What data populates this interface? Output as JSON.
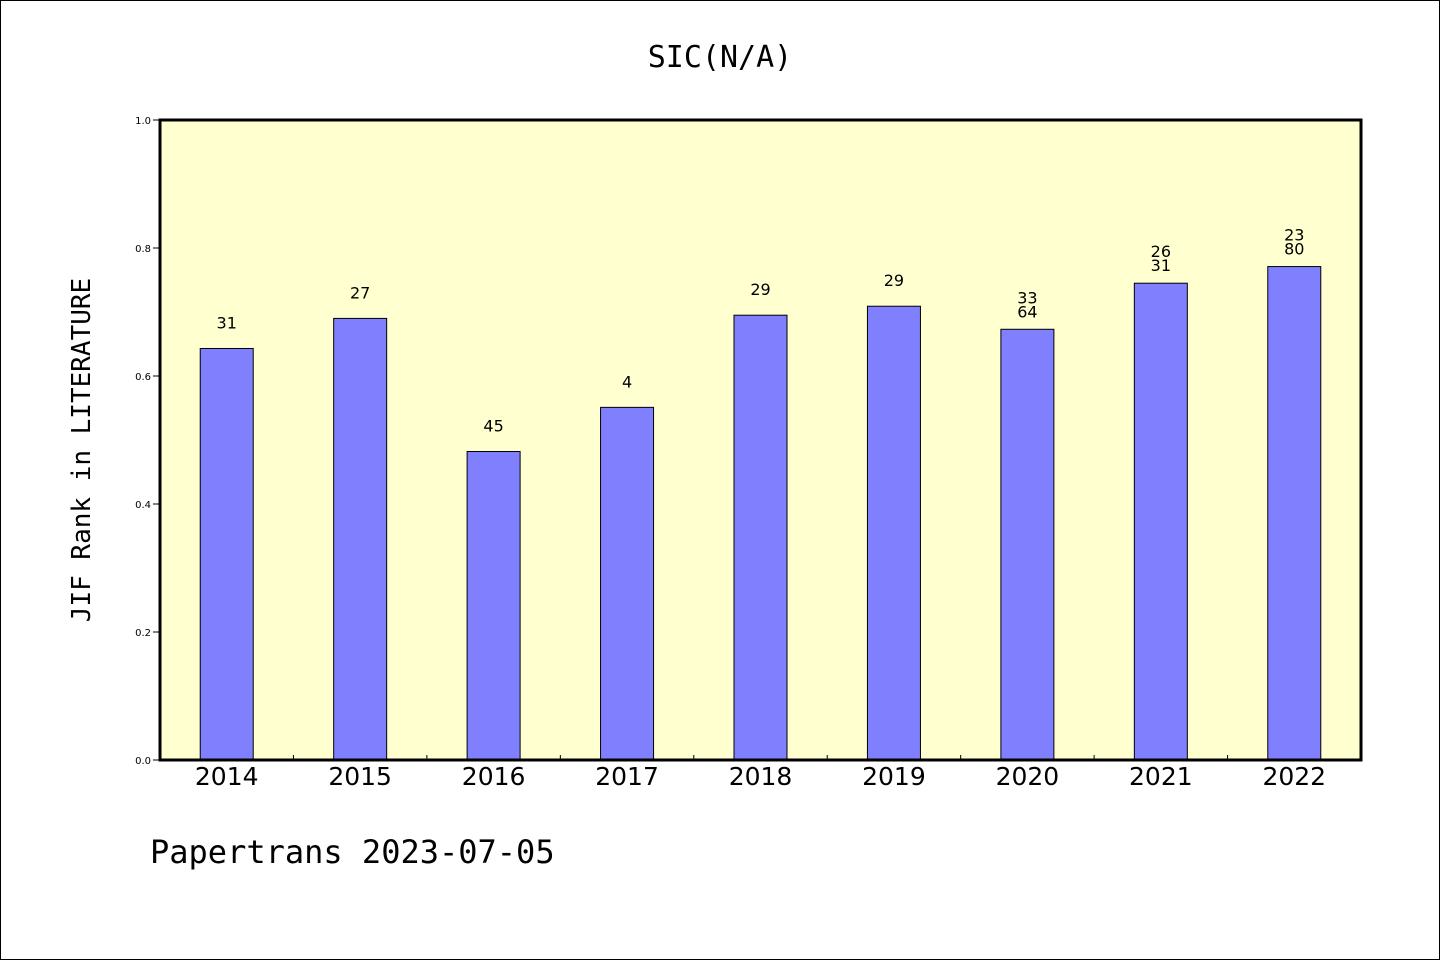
{
  "chart_data": {
    "type": "bar",
    "title": "SIC(N/A)",
    "xlabel": "",
    "ylabel": "JIF Rank in LITERATURE",
    "ylim": [
      0,
      1
    ],
    "yticks": [
      "0.0",
      "0.2",
      "0.4",
      "0.6",
      "0.8",
      "1.0"
    ],
    "categories": [
      "2014",
      "2015",
      "2016",
      "2017",
      "2018",
      "2019",
      "2020",
      "2021",
      "2022"
    ],
    "values": [
      0.643,
      0.69,
      0.482,
      0.551,
      0.695,
      0.709,
      0.673,
      0.745,
      0.771
    ],
    "labels": [
      [
        "31"
      ],
      [
        "27"
      ],
      [
        "45"
      ],
      [
        "4"
      ],
      [
        "29"
      ],
      [
        "29"
      ],
      [
        "33",
        "64"
      ],
      [
        "26",
        "31"
      ],
      [
        "23",
        "80"
      ]
    ],
    "grid": false,
    "plot_background": "#ffffd0",
    "bar_color": "#8080ff"
  },
  "footer": "Papertrans 2023-07-05"
}
